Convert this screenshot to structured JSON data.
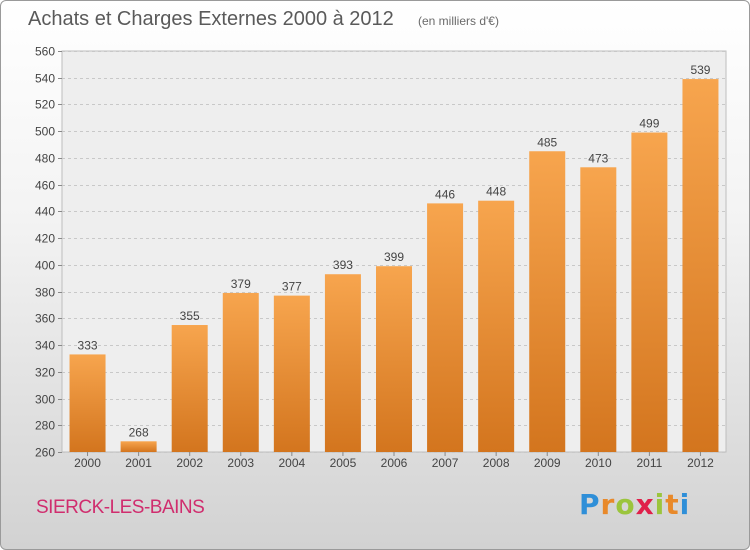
{
  "header": {
    "title": "Achats et Charges Externes 2000 à 2012",
    "subtitle": "(en milliers d'€)"
  },
  "footer": {
    "commune": "SIERCK-LES-BAINS",
    "logo_letters": [
      "P",
      "r",
      "o",
      "x",
      "i",
      "t",
      "i"
    ],
    "logo_colors": [
      "#2f8fd8",
      "#e8892a",
      "#9bc53d",
      "#e0204a",
      "#9bc53d",
      "#e8892a",
      "#2f8fd8"
    ]
  },
  "chart_data": {
    "type": "bar",
    "title": "Achats et Charges Externes 2000 à 2012",
    "subtitle": "(en milliers d'€)",
    "categories": [
      "2000",
      "2001",
      "2002",
      "2003",
      "2004",
      "2005",
      "2006",
      "2007",
      "2008",
      "2009",
      "2010",
      "2011",
      "2012"
    ],
    "values": [
      333,
      268,
      355,
      379,
      377,
      393,
      399,
      446,
      448,
      485,
      473,
      499,
      539
    ],
    "ylim": [
      260,
      560
    ],
    "yticks": [
      260,
      280,
      300,
      320,
      340,
      360,
      380,
      400,
      420,
      440,
      460,
      480,
      500,
      520,
      540,
      560
    ],
    "grid": true,
    "bar_color_top": "#f7a54e",
    "bar_color_bottom": "#d3751e"
  }
}
